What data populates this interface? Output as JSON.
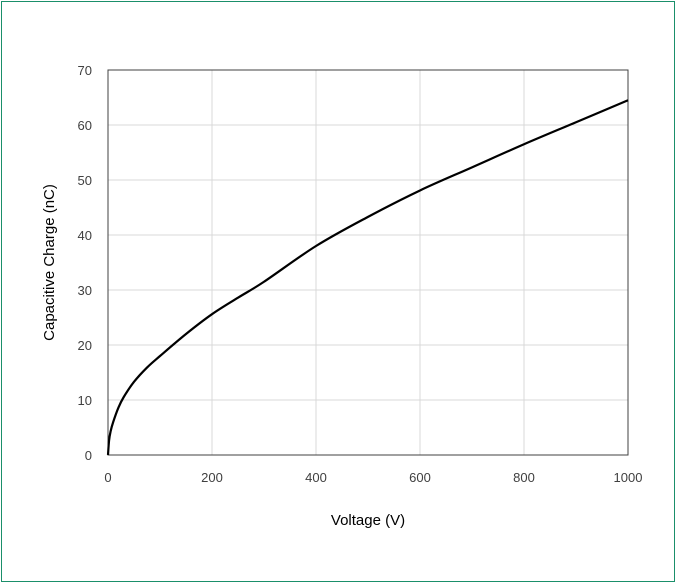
{
  "chart_data": {
    "type": "line",
    "title": "",
    "xlabel": "Voltage (V)",
    "ylabel": "Capacitive Charge (nC)",
    "xlim": [
      0,
      1000
    ],
    "ylim": [
      0,
      70
    ],
    "xticks": [
      0,
      200,
      400,
      600,
      800,
      1000
    ],
    "yticks": [
      0,
      10,
      20,
      30,
      40,
      50,
      60,
      70
    ],
    "xtick_labels": [
      "0",
      "200",
      "400",
      "600",
      "800",
      "1000"
    ],
    "ytick_labels": [
      "0",
      "10",
      "20",
      "30",
      "40",
      "50",
      "60",
      "70"
    ],
    "grid": true,
    "legend": "none",
    "series": [
      {
        "color": "#000000",
        "x": [
          0,
          2,
          5,
          10,
          20,
          30,
          50,
          75,
          100,
          150,
          200,
          250,
          300,
          400,
          500,
          600,
          700,
          800,
          900,
          1000
        ],
        "y": [
          0,
          2.6,
          4.3,
          6.0,
          8.6,
          10.5,
          13.3,
          15.9,
          18.0,
          22.0,
          25.6,
          28.6,
          31.5,
          38.0,
          43.3,
          48.1,
          52.3,
          56.5,
          60.5,
          64.5
        ]
      }
    ]
  }
}
